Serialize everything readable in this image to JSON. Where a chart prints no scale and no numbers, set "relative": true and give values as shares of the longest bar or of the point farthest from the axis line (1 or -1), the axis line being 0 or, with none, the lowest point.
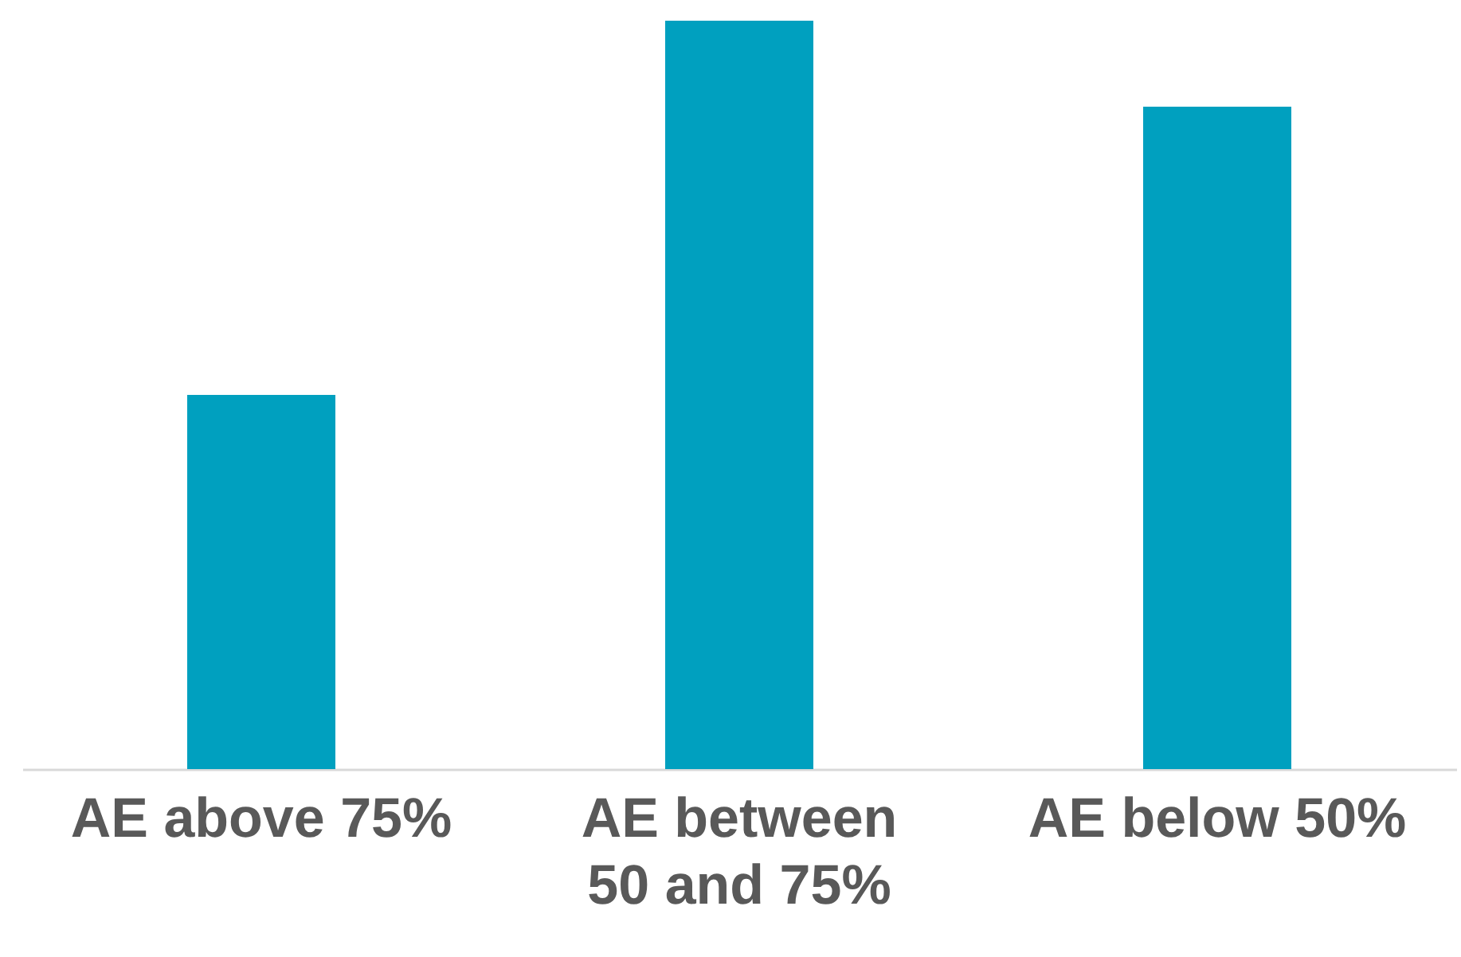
{
  "chart_data": {
    "type": "bar",
    "relative": true,
    "categories": [
      "AE above 75%",
      "AE between 50 and 75%",
      "AE below 50%"
    ],
    "values": [
      0.5,
      1,
      0.885
    ],
    "color": "#00a0bf",
    "grid": false
  }
}
